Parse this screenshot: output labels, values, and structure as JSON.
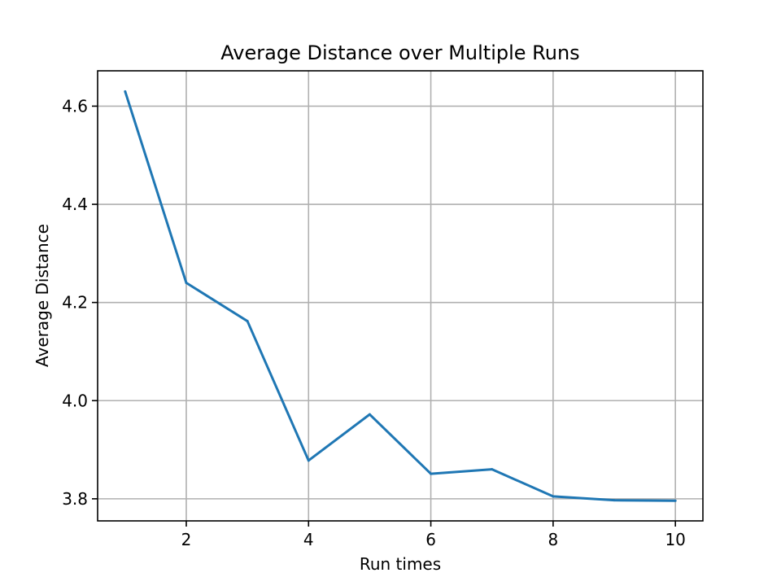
{
  "chart_data": {
    "type": "line",
    "title": "Average Distance over Multiple Runs",
    "xlabel": "Run times",
    "ylabel": "Average Distance",
    "xlim": [
      0.55,
      10.45
    ],
    "ylim": [
      3.755,
      4.672
    ],
    "x_ticks": [
      2,
      4,
      6,
      8,
      10
    ],
    "y_ticks": [
      3.8,
      4.0,
      4.2,
      4.4,
      4.6
    ],
    "x_tick_labels": [
      "2",
      "4",
      "6",
      "8",
      "10"
    ],
    "y_tick_labels": [
      "3.8",
      "4.0",
      "4.2",
      "4.4",
      "4.6"
    ],
    "grid": true,
    "series": [
      {
        "color": "#1f77b4",
        "x": [
          1,
          2,
          3,
          4,
          5,
          6,
          7,
          8,
          9,
          10
        ],
        "y": [
          4.63,
          4.24,
          4.162,
          3.878,
          3.972,
          3.851,
          3.86,
          3.805,
          3.797,
          3.796
        ]
      }
    ]
  }
}
